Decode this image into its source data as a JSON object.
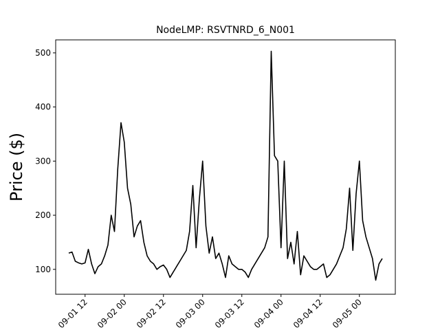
{
  "chart_data": {
    "type": "line",
    "title": "NodeLMP: RSVTNRD_6_N001",
    "y_label": "Price ($)",
    "x": [
      "09-01 07",
      "09-01 08",
      "09-01 09",
      "09-01 10",
      "09-01 11",
      "09-01 12",
      "09-01 13",
      "09-01 14",
      "09-01 15",
      "09-01 16",
      "09-01 17",
      "09-01 18",
      "09-01 19",
      "09-01 20",
      "09-01 21",
      "09-01 22",
      "09-01 23",
      "09-02 00",
      "09-02 01",
      "09-02 02",
      "09-02 03",
      "09-02 04",
      "09-02 05",
      "09-02 06",
      "09-02 07",
      "09-02 08",
      "09-02 09",
      "09-02 10",
      "09-02 11",
      "09-02 12",
      "09-02 13",
      "09-02 14",
      "09-02 15",
      "09-02 16",
      "09-02 17",
      "09-02 18",
      "09-02 19",
      "09-02 20",
      "09-02 21",
      "09-02 22",
      "09-02 23",
      "09-03 00",
      "09-03 01",
      "09-03 02",
      "09-03 03",
      "09-03 04",
      "09-03 05",
      "09-03 06",
      "09-03 07",
      "09-03 08",
      "09-03 09",
      "09-03 10",
      "09-03 11",
      "09-03 12",
      "09-03 13",
      "09-03 14",
      "09-03 15",
      "09-03 16",
      "09-03 17",
      "09-03 18",
      "09-03 19",
      "09-03 20",
      "09-03 21",
      "09-03 22",
      "09-03 23",
      "09-04 00",
      "09-04 01",
      "09-04 02",
      "09-04 03",
      "09-04 04",
      "09-04 05",
      "09-04 06",
      "09-04 07",
      "09-04 08",
      "09-04 09",
      "09-04 10",
      "09-04 11",
      "09-04 12",
      "09-04 13",
      "09-04 14",
      "09-04 15",
      "09-04 16",
      "09-04 17",
      "09-04 18",
      "09-04 19",
      "09-04 20",
      "09-04 21",
      "09-04 22",
      "09-04 23",
      "09-05 00",
      "09-05 01",
      "09-05 02",
      "09-05 03",
      "09-05 04",
      "09-05 05",
      "09-05 06",
      "09-05 07"
    ],
    "series": [
      {
        "name": "RSVTNRD_6_N001",
        "color": "#000000",
        "values": [
          130,
          132,
          115,
          112,
          110,
          112,
          137,
          110,
          92,
          105,
          110,
          125,
          145,
          200,
          170,
          285,
          371,
          335,
          250,
          220,
          160,
          180,
          190,
          150,
          125,
          115,
          110,
          100,
          105,
          108,
          100,
          85,
          95,
          105,
          115,
          125,
          135,
          170,
          255,
          140,
          230,
          300,
          180,
          130,
          160,
          120,
          130,
          110,
          85,
          125,
          110,
          105,
          100,
          100,
          95,
          85,
          100,
          110,
          120,
          130,
          140,
          160,
          503,
          310,
          300,
          140,
          300,
          120,
          150,
          110,
          170,
          90,
          125,
          115,
          105,
          100,
          100,
          105,
          110,
          85,
          90,
          100,
          110,
          125,
          140,
          175,
          250,
          135,
          240,
          300,
          190,
          160,
          140,
          120,
          80,
          110,
          120
        ]
      }
    ],
    "xlim": [
      "09-01 03",
      "09-05 11"
    ],
    "xticks": [
      "09-01 12",
      "09-02 00",
      "09-02 12",
      "09-03 00",
      "09-03 12",
      "09-04 00",
      "09-04 12",
      "09-05 00"
    ],
    "ylim": [
      54,
      524
    ],
    "yticks": [
      100,
      200,
      300,
      400,
      500
    ]
  }
}
